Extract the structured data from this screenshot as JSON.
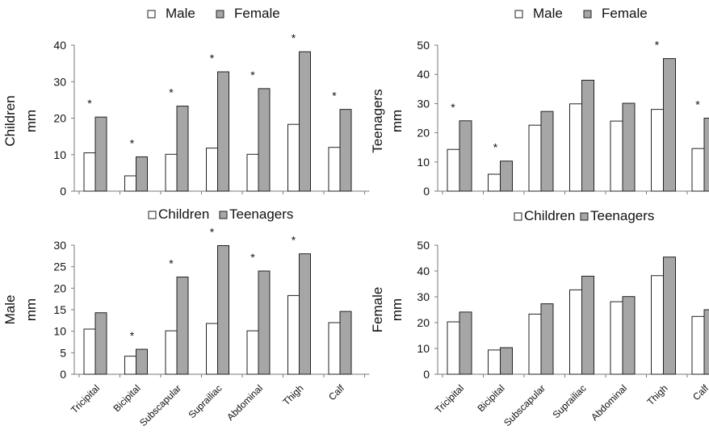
{
  "colors": {
    "male": "#ffffff",
    "female": "#a6a6a6",
    "children": "#ffffff",
    "teenagers": "#a6a6a6",
    "stroke": "#222222",
    "axis": "#7a7a7a"
  },
  "chart_data": [
    {
      "type": "bar",
      "panel": "top-left",
      "categories": [
        "Tricipital",
        "Bicipital",
        "Subscapular",
        "Suprailiac",
        "Abdominal",
        "Thigh",
        "Calf"
      ],
      "series": [
        {
          "name": "Male",
          "values": [
            10.5,
            4.2,
            10.1,
            11.8,
            10.1,
            18.3,
            12.0
          ]
        },
        {
          "name": "Female",
          "values": [
            20.3,
            9.4,
            23.3,
            32.7,
            28.1,
            38.2,
            22.4
          ]
        }
      ],
      "significance": [
        "*",
        "*",
        "*",
        "*",
        "*",
        "*",
        "*"
      ],
      "ylabel_line1": "Children",
      "ylabel_line2": "mm",
      "ylim": [
        0,
        40
      ],
      "yticks": [
        0,
        10,
        20,
        30,
        40
      ],
      "legend_placement": "top",
      "grid": false
    },
    {
      "type": "bar",
      "panel": "top-right",
      "categories": [
        "Tricipital",
        "Bicipital",
        "Subscapular",
        "Suprailiac",
        "Abdominal",
        "Thigh",
        "Calf"
      ],
      "series": [
        {
          "name": "Male",
          "values": [
            14.3,
            5.8,
            22.6,
            29.9,
            24.0,
            28.0,
            14.6
          ]
        },
        {
          "name": "Female",
          "values": [
            24.1,
            10.3,
            27.3,
            38.0,
            30.1,
            45.4,
            25.0
          ]
        }
      ],
      "significance": [
        "*",
        "*",
        "",
        "",
        "",
        "*",
        "*"
      ],
      "ylabel_line1": "Teenagers",
      "ylabel_line2": "mm",
      "ylim": [
        0,
        50
      ],
      "yticks": [
        0,
        10,
        20,
        30,
        40,
        50
      ],
      "legend_placement": "top",
      "grid": false
    },
    {
      "type": "bar",
      "panel": "bottom-left",
      "categories": [
        "Tricipital",
        "Bicipital",
        "Subscapular",
        "Suprailiac",
        "Abdominal",
        "Thigh",
        "Calf"
      ],
      "series": [
        {
          "name": "Children",
          "values": [
            10.5,
            4.2,
            10.1,
            11.8,
            10.1,
            18.3,
            12.0
          ]
        },
        {
          "name": "Teenagers",
          "values": [
            14.3,
            5.8,
            22.6,
            29.9,
            24.0,
            28.0,
            14.6
          ]
        }
      ],
      "significance": [
        "",
        "*",
        "*",
        "*",
        "*",
        "*",
        ""
      ],
      "ylabel_line1": "Male",
      "ylabel_line2": "mm",
      "ylim": [
        0,
        30
      ],
      "yticks": [
        0,
        5,
        10,
        15,
        20,
        25,
        30
      ],
      "legend_placement": "top",
      "grid": false
    },
    {
      "type": "bar",
      "panel": "bottom-right",
      "categories": [
        "Tricipital",
        "Bicipital",
        "Subscapular",
        "Suprailiac",
        "Abdominal",
        "Thigh",
        "Calf"
      ],
      "series": [
        {
          "name": "Children",
          "values": [
            20.3,
            9.4,
            23.3,
            32.7,
            28.1,
            38.2,
            22.4
          ]
        },
        {
          "name": "Teenagers",
          "values": [
            24.1,
            10.3,
            27.3,
            38.0,
            30.1,
            45.4,
            25.0
          ]
        }
      ],
      "significance": [
        "",
        "",
        "",
        "",
        "",
        "",
        ""
      ],
      "ylabel_line1": "Female",
      "ylabel_line2": "mm",
      "ylim": [
        0,
        50
      ],
      "yticks": [
        0,
        10,
        20,
        30,
        40,
        50
      ],
      "legend_placement": "top",
      "grid": false
    }
  ]
}
